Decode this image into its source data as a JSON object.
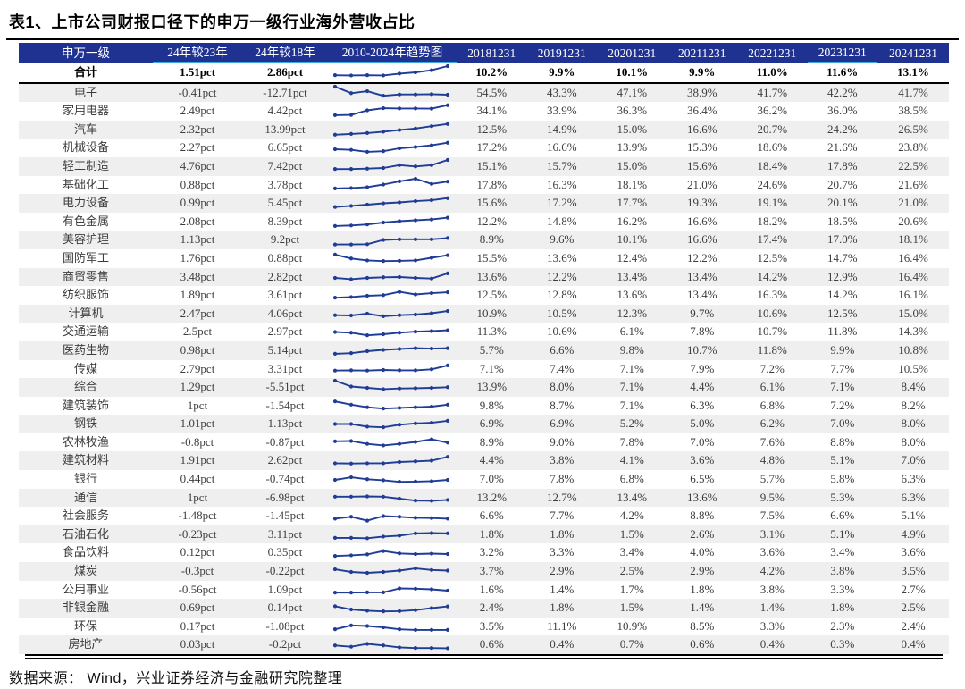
{
  "title": "表1、上市公司财报口径下的申万一级行业海外营收占比",
  "source": "数据来源： Wind，兴业证券经济与金融研究院整理",
  "colors": {
    "header_bg": "#1f3292",
    "header_text": "#ffffff",
    "header_underline": "#3fa8dc",
    "sparkline": "#1f3c96",
    "zebra_row": "#efefef",
    "body_text": "#3d3d3d",
    "rule": "#000000"
  },
  "table": {
    "headers": [
      "申万一级",
      "24年较23年",
      "24年较18年",
      "2010-2024年趋势图",
      "20181231",
      "20191231",
      "20201231",
      "20211231",
      "20221231",
      "20231231",
      "20241231"
    ],
    "total_row": {
      "name": "合计",
      "vs23": "1.51pct",
      "vs18": "2.86pct",
      "trend": [
        0.3,
        0.28,
        0.3,
        0.28,
        0.42,
        0.52,
        0.68,
        1.0
      ],
      "years": [
        "10.2%",
        "9.9%",
        "10.1%",
        "9.9%",
        "11.0%",
        "11.6%",
        "13.1%"
      ]
    },
    "rows": [
      {
        "name": "电子",
        "vs23": "-0.41pct",
        "vs18": "-12.71pct",
        "trend": [
          1.0,
          0.5,
          0.65,
          0.3,
          0.4,
          0.4,
          0.42,
          0.38
        ],
        "years": [
          "54.5%",
          "43.3%",
          "47.1%",
          "38.9%",
          "41.7%",
          "42.2%",
          "41.7%"
        ]
      },
      {
        "name": "家用电器",
        "vs23": "2.49pct",
        "vs18": "4.42pct",
        "trend": [
          0.18,
          0.2,
          0.55,
          0.72,
          0.7,
          0.7,
          0.68,
          0.95
        ],
        "years": [
          "34.1%",
          "33.9%",
          "36.3%",
          "36.4%",
          "36.2%",
          "36.0%",
          "38.5%"
        ]
      },
      {
        "name": "汽车",
        "vs23": "2.32pct",
        "vs18": "13.99pct",
        "trend": [
          0.12,
          0.18,
          0.25,
          0.35,
          0.48,
          0.6,
          0.78,
          0.95
        ],
        "years": [
          "12.5%",
          "14.9%",
          "15.0%",
          "16.6%",
          "20.7%",
          "24.2%",
          "26.5%"
        ]
      },
      {
        "name": "机械设备",
        "vs23": "2.27pct",
        "vs18": "6.65pct",
        "trend": [
          0.45,
          0.4,
          0.25,
          0.3,
          0.52,
          0.62,
          0.75,
          0.95
        ],
        "years": [
          "17.2%",
          "16.6%",
          "13.9%",
          "15.3%",
          "18.6%",
          "21.6%",
          "23.8%"
        ]
      },
      {
        "name": "轻工制造",
        "vs23": "4.76pct",
        "vs18": "7.42pct",
        "trend": [
          0.3,
          0.3,
          0.33,
          0.38,
          0.6,
          0.5,
          0.6,
          1.0
        ],
        "years": [
          "15.1%",
          "15.7%",
          "15.0%",
          "15.6%",
          "18.4%",
          "17.8%",
          "22.5%"
        ]
      },
      {
        "name": "基础化工",
        "vs23": "0.88pct",
        "vs18": "3.78pct",
        "trend": [
          0.25,
          0.28,
          0.35,
          0.55,
          0.8,
          1.0,
          0.6,
          0.78
        ],
        "years": [
          "17.8%",
          "16.3%",
          "18.1%",
          "21.0%",
          "24.6%",
          "20.7%",
          "21.6%"
        ]
      },
      {
        "name": "电力设备",
        "vs23": "0.99pct",
        "vs18": "5.45pct",
        "trend": [
          0.2,
          0.28,
          0.38,
          0.48,
          0.55,
          0.65,
          0.72,
          0.88
        ],
        "years": [
          "15.6%",
          "17.2%",
          "17.7%",
          "19.3%",
          "19.1%",
          "20.1%",
          "21.0%"
        ]
      },
      {
        "name": "有色金属",
        "vs23": "2.08pct",
        "vs18": "8.39pct",
        "trend": [
          0.18,
          0.22,
          0.3,
          0.45,
          0.55,
          0.62,
          0.68,
          0.82
        ],
        "years": [
          "12.2%",
          "14.8%",
          "16.2%",
          "16.6%",
          "18.2%",
          "18.5%",
          "20.6%"
        ]
      },
      {
        "name": "美容护理",
        "vs23": "1.13pct",
        "vs18": "9.2pct",
        "trend": [
          0.2,
          0.2,
          0.22,
          0.55,
          0.6,
          0.6,
          0.6,
          0.7
        ],
        "years": [
          "8.9%",
          "9.6%",
          "10.1%",
          "16.6%",
          "17.4%",
          "17.0%",
          "18.1%"
        ]
      },
      {
        "name": "国防军工",
        "vs23": "1.76pct",
        "vs18": "0.88pct",
        "trend": [
          0.8,
          0.5,
          0.35,
          0.3,
          0.32,
          0.35,
          0.55,
          0.75
        ],
        "years": [
          "15.5%",
          "13.6%",
          "12.4%",
          "12.2%",
          "12.5%",
          "14.7%",
          "16.4%"
        ]
      },
      {
        "name": "商贸零售",
        "vs23": "3.48pct",
        "vs18": "2.82pct",
        "trend": [
          0.45,
          0.35,
          0.45,
          0.5,
          0.52,
          0.45,
          0.4,
          0.8
        ],
        "years": [
          "13.6%",
          "12.2%",
          "13.4%",
          "13.4%",
          "14.2%",
          "12.9%",
          "16.4%"
        ]
      },
      {
        "name": "纺织服饰",
        "vs23": "1.89pct",
        "vs18": "3.61pct",
        "trend": [
          0.3,
          0.35,
          0.45,
          0.5,
          0.75,
          0.55,
          0.65,
          0.72
        ],
        "years": [
          "12.5%",
          "12.8%",
          "13.6%",
          "13.4%",
          "16.3%",
          "14.2%",
          "16.1%"
        ]
      },
      {
        "name": "计算机",
        "vs23": "2.47pct",
        "vs18": "4.06pct",
        "trend": [
          0.4,
          0.38,
          0.52,
          0.32,
          0.4,
          0.45,
          0.55,
          0.72
        ],
        "years": [
          "10.9%",
          "10.5%",
          "12.3%",
          "9.7%",
          "10.6%",
          "12.5%",
          "15.0%"
        ]
      },
      {
        "name": "交通运输",
        "vs23": "2.5pct",
        "vs18": "2.97pct",
        "trend": [
          0.55,
          0.5,
          0.3,
          0.38,
          0.5,
          0.58,
          0.62,
          0.68
        ],
        "years": [
          "11.3%",
          "10.6%",
          "6.1%",
          "7.8%",
          "10.7%",
          "11.8%",
          "14.3%"
        ]
      },
      {
        "name": "医药生物",
        "vs23": "0.98pct",
        "vs18": "5.14pct",
        "trend": [
          0.25,
          0.3,
          0.45,
          0.55,
          0.62,
          0.68,
          0.65,
          0.68
        ],
        "years": [
          "5.7%",
          "6.6%",
          "9.8%",
          "10.7%",
          "11.8%",
          "9.9%",
          "10.8%"
        ]
      },
      {
        "name": "传媒",
        "vs23": "2.79pct",
        "vs18": "3.31pct",
        "trend": [
          0.4,
          0.42,
          0.4,
          0.45,
          0.42,
          0.42,
          0.5,
          0.8
        ],
        "years": [
          "7.1%",
          "7.4%",
          "7.1%",
          "7.9%",
          "7.2%",
          "7.7%",
          "10.5%"
        ]
      },
      {
        "name": "综合",
        "vs23": "1.29pct",
        "vs18": "-5.51pct",
        "trend": [
          1.0,
          0.55,
          0.45,
          0.35,
          0.4,
          0.42,
          0.45,
          0.5
        ],
        "years": [
          "13.9%",
          "8.0%",
          "7.1%",
          "4.4%",
          "6.1%",
          "7.1%",
          "8.4%"
        ]
      },
      {
        "name": "建筑装饰",
        "vs23": "1pct",
        "vs18": "-1.54pct",
        "trend": [
          0.85,
          0.6,
          0.4,
          0.3,
          0.35,
          0.4,
          0.45,
          0.6
        ],
        "years": [
          "9.8%",
          "8.7%",
          "7.1%",
          "6.3%",
          "6.8%",
          "7.2%",
          "8.2%"
        ]
      },
      {
        "name": "钢铁",
        "vs23": "1.01pct",
        "vs18": "1.13pct",
        "trend": [
          0.55,
          0.55,
          0.35,
          0.3,
          0.5,
          0.6,
          0.65,
          0.8
        ],
        "years": [
          "6.9%",
          "6.9%",
          "5.2%",
          "5.0%",
          "6.2%",
          "7.0%",
          "8.0%"
        ]
      },
      {
        "name": "农林牧渔",
        "vs23": "-0.8pct",
        "vs18": "-0.87pct",
        "trend": [
          0.6,
          0.62,
          0.4,
          0.28,
          0.4,
          0.55,
          0.75,
          0.5
        ],
        "years": [
          "8.9%",
          "9.0%",
          "7.8%",
          "7.0%",
          "7.6%",
          "8.8%",
          "8.0%"
        ]
      },
      {
        "name": "建筑材料",
        "vs23": "1.91pct",
        "vs18": "2.62pct",
        "trend": [
          0.35,
          0.33,
          0.35,
          0.35,
          0.45,
          0.5,
          0.55,
          0.85
        ],
        "years": [
          "4.4%",
          "3.8%",
          "4.1%",
          "3.6%",
          "4.8%",
          "5.1%",
          "7.0%"
        ]
      },
      {
        "name": "银行",
        "vs23": "0.44pct",
        "vs18": "-0.74pct",
        "trend": [
          0.45,
          0.65,
          0.5,
          0.42,
          0.3,
          0.32,
          0.35,
          0.45
        ],
        "years": [
          "7.0%",
          "7.8%",
          "6.8%",
          "6.5%",
          "5.7%",
          "5.8%",
          "6.3%"
        ]
      },
      {
        "name": "通信",
        "vs23": "1pct",
        "vs18": "-6.98pct",
        "trend": [
          0.6,
          0.6,
          0.62,
          0.6,
          0.45,
          0.3,
          0.28,
          0.35
        ],
        "years": [
          "13.2%",
          "12.7%",
          "13.4%",
          "13.6%",
          "9.5%",
          "5.3%",
          "6.3%"
        ]
      },
      {
        "name": "社会服务",
        "vs23": "-1.48pct",
        "vs18": "-1.45pct",
        "trend": [
          0.35,
          0.5,
          0.2,
          0.55,
          0.5,
          0.42,
          0.4,
          0.35
        ],
        "years": [
          "6.6%",
          "7.7%",
          "4.2%",
          "8.8%",
          "7.5%",
          "6.6%",
          "5.1%"
        ]
      },
      {
        "name": "石油石化",
        "vs23": "-0.23pct",
        "vs18": "3.11pct",
        "trend": [
          0.25,
          0.25,
          0.22,
          0.35,
          0.42,
          0.6,
          0.62,
          0.6
        ],
        "years": [
          "1.8%",
          "1.8%",
          "1.5%",
          "2.6%",
          "3.1%",
          "5.1%",
          "4.9%"
        ]
      },
      {
        "name": "食品饮料",
        "vs23": "0.12pct",
        "vs18": "0.35pct",
        "trend": [
          0.3,
          0.35,
          0.42,
          0.68,
          0.5,
          0.45,
          0.48,
          0.45
        ],
        "years": [
          "3.2%",
          "3.3%",
          "3.4%",
          "4.0%",
          "3.6%",
          "3.4%",
          "3.6%"
        ]
      },
      {
        "name": "煤炭",
        "vs23": "-0.3pct",
        "vs18": "-0.22pct",
        "trend": [
          0.65,
          0.45,
          0.38,
          0.45,
          0.55,
          0.72,
          0.6,
          0.55
        ],
        "years": [
          "3.7%",
          "2.9%",
          "2.5%",
          "2.9%",
          "4.2%",
          "3.8%",
          "3.5%"
        ]
      },
      {
        "name": "公用事业",
        "vs23": "-0.56pct",
        "vs18": "1.09pct",
        "trend": [
          0.3,
          0.3,
          0.32,
          0.32,
          0.62,
          0.6,
          0.55,
          0.45
        ],
        "years": [
          "1.6%",
          "1.4%",
          "1.7%",
          "1.8%",
          "3.8%",
          "3.3%",
          "2.7%"
        ]
      },
      {
        "name": "非银金融",
        "vs23": "0.69pct",
        "vs18": "0.14pct",
        "trend": [
          0.7,
          0.45,
          0.35,
          0.3,
          0.32,
          0.4,
          0.55,
          0.68
        ],
        "years": [
          "2.4%",
          "1.8%",
          "1.5%",
          "1.4%",
          "1.4%",
          "1.8%",
          "2.5%"
        ]
      },
      {
        "name": "环保",
        "vs23": "0.17pct",
        "vs18": "-1.08pct",
        "trend": [
          0.3,
          0.6,
          0.55,
          0.45,
          0.3,
          0.25,
          0.25,
          0.25
        ],
        "years": [
          "3.5%",
          "11.1%",
          "10.9%",
          "8.5%",
          "3.3%",
          "2.3%",
          "2.4%"
        ]
      },
      {
        "name": "房地产",
        "vs23": "0.03pct",
        "vs18": "-0.2pct",
        "trend": [
          0.5,
          0.4,
          0.62,
          0.5,
          0.35,
          0.3,
          0.3,
          0.28
        ],
        "years": [
          "0.6%",
          "0.4%",
          "0.7%",
          "0.6%",
          "0.4%",
          "0.3%",
          "0.4%"
        ]
      }
    ]
  }
}
